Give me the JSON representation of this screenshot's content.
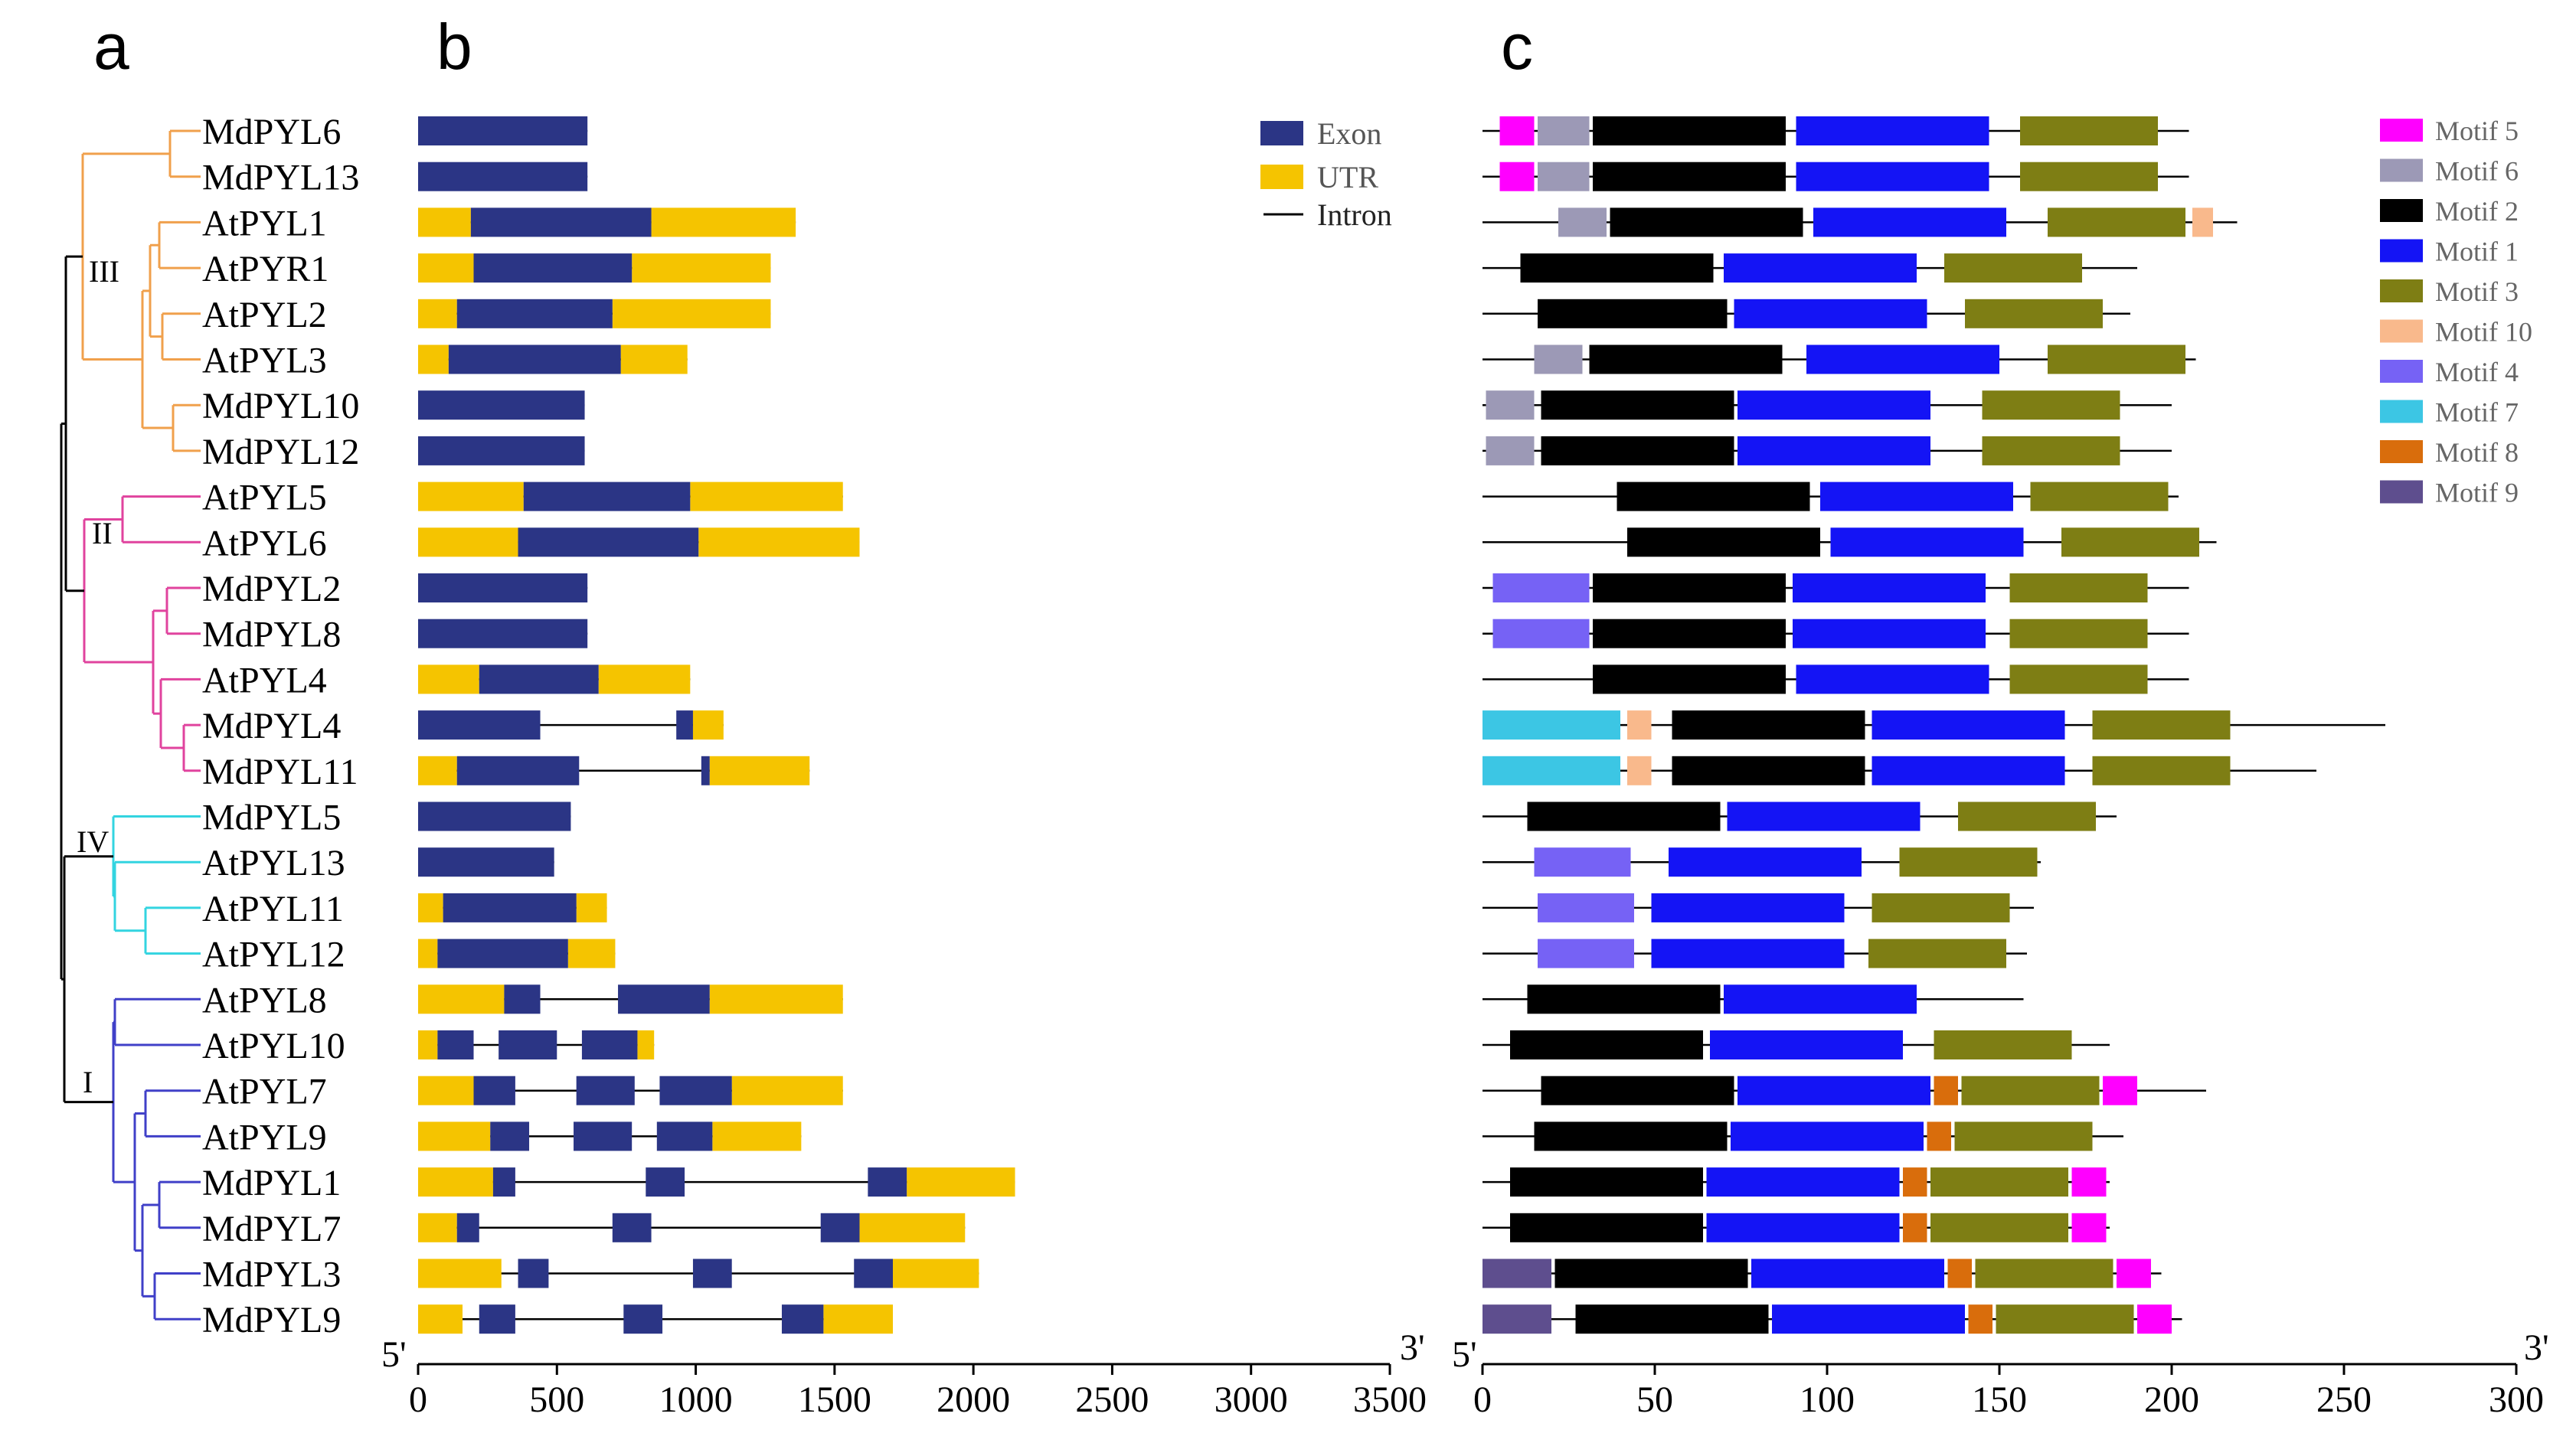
{
  "panels": {
    "a": "a",
    "b": "b",
    "c": "c"
  },
  "genes": [
    "MdPYL6",
    "MdPYL13",
    "AtPYL1",
    "AtPYR1",
    "AtPYL2",
    "AtPYL3",
    "MdPYL10",
    "MdPYL12",
    "AtPYL5",
    "AtPYL6",
    "MdPYL2",
    "MdPYL8",
    "AtPYL4",
    "MdPYL4",
    "MdPYL11",
    "MdPYL5",
    "AtPYL13",
    "AtPYL11",
    "AtPYL12",
    "AtPYL8",
    "AtPYL10",
    "AtPYL7",
    "AtPYL9",
    "MdPYL1",
    "MdPYL7",
    "MdPYL3",
    "MdPYL9"
  ],
  "tree": {
    "groups": [
      {
        "label": "III",
        "color": "#f0a04c",
        "rows": [
          0,
          7
        ]
      },
      {
        "label": "II",
        "color": "#e0439e",
        "rows": [
          8,
          14
        ]
      },
      {
        "label": "IV",
        "color": "#33d4e0",
        "rows": [
          15,
          18
        ]
      },
      {
        "label": "I",
        "color": "#4040c8",
        "rows": [
          19,
          26
        ]
      }
    ]
  },
  "gene_structure": {
    "legend": [
      {
        "name": "Exon",
        "color": "#2b3585"
      },
      {
        "name": "UTR",
        "color": "#f5c400"
      },
      {
        "name": "Intron",
        "color": "#000000"
      }
    ],
    "axis": {
      "min": 0,
      "max": 3500,
      "ticks": [
        0,
        500,
        1000,
        1500,
        2000,
        2500,
        3000,
        3500
      ],
      "left_label": "5'",
      "right_label": "3'"
    },
    "rows": [
      {
        "exons": [
          [
            0,
            610
          ]
        ],
        "utrs": []
      },
      {
        "exons": [
          [
            0,
            610
          ]
        ],
        "utrs": []
      },
      {
        "exons": [
          [
            190,
            840
          ]
        ],
        "utrs": [
          [
            0,
            190
          ],
          [
            840,
            1360
          ]
        ]
      },
      {
        "exons": [
          [
            200,
            770
          ]
        ],
        "utrs": [
          [
            0,
            200
          ],
          [
            770,
            1270
          ]
        ]
      },
      {
        "exons": [
          [
            140,
            700
          ]
        ],
        "utrs": [
          [
            0,
            140
          ],
          [
            700,
            1270
          ]
        ]
      },
      {
        "exons": [
          [
            110,
            730
          ]
        ],
        "utrs": [
          [
            0,
            110
          ],
          [
            730,
            970
          ]
        ]
      },
      {
        "exons": [
          [
            0,
            600
          ]
        ],
        "utrs": []
      },
      {
        "exons": [
          [
            0,
            600
          ]
        ],
        "utrs": []
      },
      {
        "exons": [
          [
            380,
            980
          ]
        ],
        "utrs": [
          [
            0,
            380
          ],
          [
            980,
            1530
          ]
        ]
      },
      {
        "exons": [
          [
            360,
            1010
          ]
        ],
        "utrs": [
          [
            0,
            360
          ],
          [
            1010,
            1590
          ]
        ]
      },
      {
        "exons": [
          [
            0,
            610
          ]
        ],
        "utrs": []
      },
      {
        "exons": [
          [
            0,
            610
          ]
        ],
        "utrs": []
      },
      {
        "exons": [
          [
            220,
            650
          ]
        ],
        "utrs": [
          [
            0,
            220
          ],
          [
            650,
            980
          ]
        ]
      },
      {
        "exons": [
          [
            0,
            440
          ],
          [
            930,
            990
          ]
        ],
        "utrs": [
          [
            990,
            1100
          ]
        ]
      },
      {
        "exons": [
          [
            140,
            580
          ],
          [
            1020,
            1050
          ]
        ],
        "utrs": [
          [
            0,
            140
          ],
          [
            1050,
            1410
          ]
        ]
      },
      {
        "exons": [
          [
            0,
            550
          ]
        ],
        "utrs": []
      },
      {
        "exons": [
          [
            0,
            490
          ]
        ],
        "utrs": []
      },
      {
        "exons": [
          [
            90,
            570
          ]
        ],
        "utrs": [
          [
            0,
            90
          ],
          [
            570,
            680
          ]
        ]
      },
      {
        "exons": [
          [
            70,
            540
          ]
        ],
        "utrs": [
          [
            0,
            70
          ],
          [
            540,
            710
          ]
        ]
      },
      {
        "exons": [
          [
            310,
            440
          ],
          [
            720,
            1050
          ]
        ],
        "utrs": [
          [
            0,
            310
          ],
          [
            1050,
            1530
          ]
        ]
      },
      {
        "exons": [
          [
            70,
            200
          ],
          [
            290,
            500
          ],
          [
            590,
            790
          ]
        ],
        "utrs": [
          [
            0,
            70
          ],
          [
            790,
            850
          ]
        ]
      },
      {
        "exons": [
          [
            200,
            350
          ],
          [
            570,
            780
          ],
          [
            870,
            1130
          ]
        ],
        "utrs": [
          [
            0,
            200
          ],
          [
            1130,
            1530
          ]
        ]
      },
      {
        "exons": [
          [
            260,
            400
          ],
          [
            560,
            770
          ],
          [
            860,
            1060
          ]
        ],
        "utrs": [
          [
            0,
            260
          ],
          [
            1060,
            1380
          ]
        ]
      },
      {
        "exons": [
          [
            270,
            350
          ],
          [
            820,
            960
          ],
          [
            1620,
            1760
          ]
        ],
        "utrs": [
          [
            0,
            270
          ],
          [
            1760,
            2150
          ]
        ]
      },
      {
        "exons": [
          [
            140,
            220
          ],
          [
            700,
            840
          ],
          [
            1450,
            1590
          ]
        ],
        "utrs": [
          [
            0,
            140
          ],
          [
            1590,
            1970
          ]
        ]
      },
      {
        "exons": [
          [
            360,
            470
          ],
          [
            990,
            1130
          ],
          [
            1570,
            1710
          ]
        ],
        "utrs": [
          [
            0,
            300
          ],
          [
            1710,
            2020
          ]
        ]
      },
      {
        "exons": [
          [
            220,
            350
          ],
          [
            740,
            880
          ],
          [
            1310,
            1460
          ]
        ],
        "utrs": [
          [
            0,
            160
          ],
          [
            1460,
            1710
          ]
        ]
      }
    ]
  },
  "motif_structure": {
    "legend": [
      {
        "name": "Motif 5",
        "color": "#ff00ff"
      },
      {
        "name": "Motif 6",
        "color": "#9c99b6"
      },
      {
        "name": "Motif 2",
        "color": "#000000"
      },
      {
        "name": "Motif 1",
        "color": "#1414f5"
      },
      {
        "name": "Motif 3",
        "color": "#7e7e14"
      },
      {
        "name": "Motif 10",
        "color": "#f9b98c"
      },
      {
        "name": "Motif 4",
        "color": "#7662f5"
      },
      {
        "name": "Motif 7",
        "color": "#3cc6e4"
      },
      {
        "name": "Motif 8",
        "color": "#d96d0c"
      },
      {
        "name": "Motif 9",
        "color": "#5e4e8e"
      }
    ],
    "axis": {
      "min": 0,
      "max": 300,
      "ticks": [
        0,
        50,
        100,
        150,
        200,
        250,
        300
      ],
      "left_label": "5'",
      "right_label": "3'"
    },
    "rows": [
      {
        "length": 205,
        "motifs": [
          [
            5,
            15,
            "Motif 5"
          ],
          [
            16,
            31,
            "Motif 6"
          ],
          [
            32,
            88,
            "Motif 2"
          ],
          [
            91,
            147,
            "Motif 1"
          ],
          [
            156,
            196,
            "Motif 3"
          ]
        ]
      },
      {
        "length": 205,
        "motifs": [
          [
            5,
            15,
            "Motif 5"
          ],
          [
            16,
            31,
            "Motif 6"
          ],
          [
            32,
            88,
            "Motif 2"
          ],
          [
            91,
            147,
            "Motif 1"
          ],
          [
            156,
            196,
            "Motif 3"
          ]
        ]
      },
      {
        "length": 219,
        "motifs": [
          [
            22,
            36,
            "Motif 6"
          ],
          [
            37,
            93,
            "Motif 2"
          ],
          [
            96,
            152,
            "Motif 1"
          ],
          [
            164,
            204,
            "Motif 3"
          ],
          [
            206,
            212,
            "Motif 10"
          ]
        ]
      },
      {
        "length": 190,
        "motifs": [
          [
            11,
            67,
            "Motif 2"
          ],
          [
            70,
            126,
            "Motif 1"
          ],
          [
            134,
            174,
            "Motif 3"
          ]
        ]
      },
      {
        "length": 188,
        "motifs": [
          [
            16,
            71,
            "Motif 2"
          ],
          [
            73,
            129,
            "Motif 1"
          ],
          [
            140,
            180,
            "Motif 3"
          ]
        ]
      },
      {
        "length": 207,
        "motifs": [
          [
            15,
            29,
            "Motif 6"
          ],
          [
            31,
            87,
            "Motif 2"
          ],
          [
            94,
            150,
            "Motif 1"
          ],
          [
            164,
            204,
            "Motif 3"
          ]
        ]
      },
      {
        "length": 200,
        "motifs": [
          [
            1,
            15,
            "Motif 6"
          ],
          [
            17,
            73,
            "Motif 2"
          ],
          [
            74,
            130,
            "Motif 1"
          ],
          [
            145,
            185,
            "Motif 3"
          ]
        ]
      },
      {
        "length": 200,
        "motifs": [
          [
            1,
            15,
            "Motif 6"
          ],
          [
            17,
            73,
            "Motif 2"
          ],
          [
            74,
            130,
            "Motif 1"
          ],
          [
            145,
            185,
            "Motif 3"
          ]
        ]
      },
      {
        "length": 202,
        "motifs": [
          [
            39,
            95,
            "Motif 2"
          ],
          [
            98,
            154,
            "Motif 1"
          ],
          [
            159,
            199,
            "Motif 3"
          ]
        ]
      },
      {
        "length": 213,
        "motifs": [
          [
            42,
            98,
            "Motif 2"
          ],
          [
            101,
            157,
            "Motif 1"
          ],
          [
            168,
            208,
            "Motif 3"
          ]
        ]
      },
      {
        "length": 205,
        "motifs": [
          [
            3,
            31,
            "Motif 4"
          ],
          [
            32,
            88,
            "Motif 2"
          ],
          [
            90,
            146,
            "Motif 1"
          ],
          [
            153,
            193,
            "Motif 3"
          ]
        ]
      },
      {
        "length": 205,
        "motifs": [
          [
            3,
            31,
            "Motif 4"
          ],
          [
            32,
            88,
            "Motif 2"
          ],
          [
            90,
            146,
            "Motif 1"
          ],
          [
            153,
            193,
            "Motif 3"
          ]
        ]
      },
      {
        "length": 205,
        "motifs": [
          [
            32,
            88,
            "Motif 2"
          ],
          [
            91,
            147,
            "Motif 1"
          ],
          [
            153,
            193,
            "Motif 3"
          ]
        ]
      },
      {
        "length": 262,
        "motifs": [
          [
            0,
            40,
            "Motif 7"
          ],
          [
            42,
            49,
            "Motif 10"
          ],
          [
            55,
            111,
            "Motif 2"
          ],
          [
            113,
            169,
            "Motif 1"
          ],
          [
            177,
            217,
            "Motif 3"
          ]
        ]
      },
      {
        "length": 242,
        "motifs": [
          [
            0,
            40,
            "Motif 7"
          ],
          [
            42,
            49,
            "Motif 10"
          ],
          [
            55,
            111,
            "Motif 2"
          ],
          [
            113,
            169,
            "Motif 1"
          ],
          [
            177,
            217,
            "Motif 3"
          ]
        ]
      },
      {
        "length": 184,
        "motifs": [
          [
            13,
            69,
            "Motif 2"
          ],
          [
            71,
            127,
            "Motif 1"
          ],
          [
            138,
            178,
            "Motif 3"
          ]
        ]
      },
      {
        "length": 162,
        "motifs": [
          [
            15,
            43,
            "Motif 4"
          ],
          [
            54,
            110,
            "Motif 1"
          ],
          [
            121,
            161,
            "Motif 3"
          ]
        ]
      },
      {
        "length": 160,
        "motifs": [
          [
            16,
            44,
            "Motif 4"
          ],
          [
            49,
            105,
            "Motif 1"
          ],
          [
            113,
            153,
            "Motif 3"
          ]
        ]
      },
      {
        "length": 158,
        "motifs": [
          [
            16,
            44,
            "Motif 4"
          ],
          [
            49,
            105,
            "Motif 1"
          ],
          [
            112,
            152,
            "Motif 3"
          ]
        ]
      },
      {
        "length": 157,
        "motifs": [
          [
            13,
            69,
            "Motif 2"
          ],
          [
            70,
            126,
            "Motif 1"
          ]
        ]
      },
      {
        "length": 182,
        "motifs": [
          [
            8,
            64,
            "Motif 2"
          ],
          [
            66,
            122,
            "Motif 1"
          ],
          [
            131,
            171,
            "Motif 3"
          ]
        ]
      },
      {
        "length": 210,
        "motifs": [
          [
            17,
            73,
            "Motif 2"
          ],
          [
            74,
            130,
            "Motif 1"
          ],
          [
            131,
            138,
            "Motif 8"
          ],
          [
            139,
            179,
            "Motif 3"
          ],
          [
            180,
            190,
            "Motif 5"
          ]
        ]
      },
      {
        "length": 186,
        "motifs": [
          [
            15,
            71,
            "Motif 2"
          ],
          [
            72,
            128,
            "Motif 1"
          ],
          [
            129,
            136,
            "Motif 8"
          ],
          [
            137,
            177,
            "Motif 3"
          ]
        ]
      },
      {
        "length": 182,
        "motifs": [
          [
            8,
            64,
            "Motif 2"
          ],
          [
            65,
            121,
            "Motif 1"
          ],
          [
            122,
            129,
            "Motif 8"
          ],
          [
            130,
            170,
            "Motif 3"
          ],
          [
            171,
            181,
            "Motif 5"
          ]
        ]
      },
      {
        "length": 182,
        "motifs": [
          [
            8,
            64,
            "Motif 2"
          ],
          [
            65,
            121,
            "Motif 1"
          ],
          [
            122,
            129,
            "Motif 8"
          ],
          [
            130,
            170,
            "Motif 3"
          ],
          [
            171,
            181,
            "Motif 5"
          ]
        ]
      },
      {
        "length": 197,
        "motifs": [
          [
            0,
            20,
            "Motif 9"
          ],
          [
            21,
            77,
            "Motif 2"
          ],
          [
            78,
            134,
            "Motif 1"
          ],
          [
            135,
            142,
            "Motif 8"
          ],
          [
            143,
            183,
            "Motif 3"
          ],
          [
            184,
            194,
            "Motif 5"
          ]
        ]
      },
      {
        "length": 203,
        "motifs": [
          [
            0,
            20,
            "Motif 9"
          ],
          [
            27,
            83,
            "Motif 2"
          ],
          [
            84,
            140,
            "Motif 1"
          ],
          [
            141,
            148,
            "Motif 8"
          ],
          [
            149,
            189,
            "Motif 3"
          ],
          [
            190,
            200,
            "Motif 5"
          ]
        ]
      }
    ]
  }
}
